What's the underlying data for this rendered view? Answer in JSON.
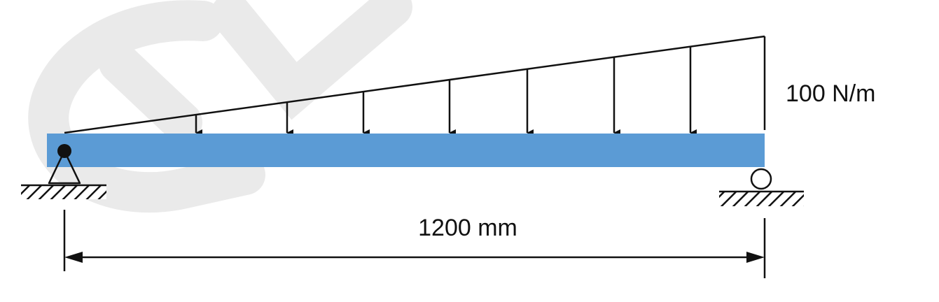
{
  "load": {
    "magnitude_label": "100 N/m"
  },
  "span": {
    "label": "1200 mm"
  },
  "colors": {
    "beam": "#5b9bd5",
    "line": "#111111",
    "watermark": "#e8e8e8"
  },
  "icons": {
    "pin_support": "pin-support-icon",
    "roller_support": "roller-support-icon",
    "ground_hatch": "ground-hatch-icon",
    "load_arrow": "arrow-down-icon"
  }
}
